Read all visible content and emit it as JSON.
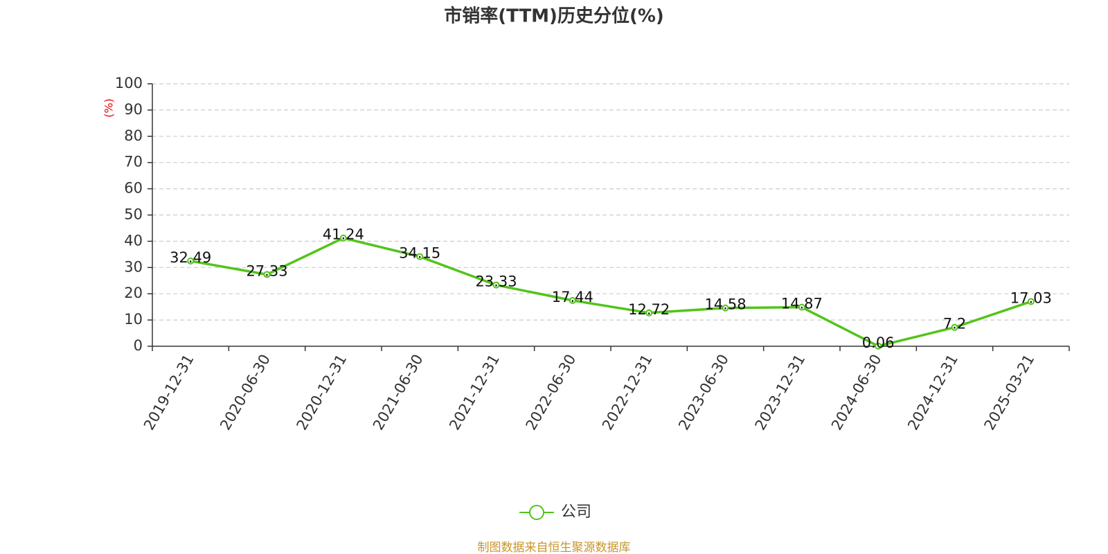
{
  "chart_data": {
    "type": "line",
    "title": "市销率(TTM)历史分位(%)",
    "y_label": "(%)",
    "source": "制图数据来自恒生聚源数据库",
    "categories": [
      "2019-12-31",
      "2020-06-30",
      "2020-12-31",
      "2021-06-30",
      "2021-12-31",
      "2022-06-30",
      "2022-12-31",
      "2023-06-30",
      "2023-12-31",
      "2024-06-30",
      "2024-12-31",
      "2025-03-21"
    ],
    "series": [
      {
        "name": "公司",
        "color": "#52c41a",
        "values": [
          32.49,
          27.33,
          41.24,
          34.15,
          23.33,
          17.44,
          12.72,
          14.58,
          14.87,
          0.06,
          7.2,
          17.03
        ]
      }
    ],
    "ylim": [
      0,
      100
    ],
    "yticks": [
      0,
      10,
      20,
      30,
      40,
      50,
      60,
      70,
      80,
      90,
      100
    ],
    "grid": true
  }
}
